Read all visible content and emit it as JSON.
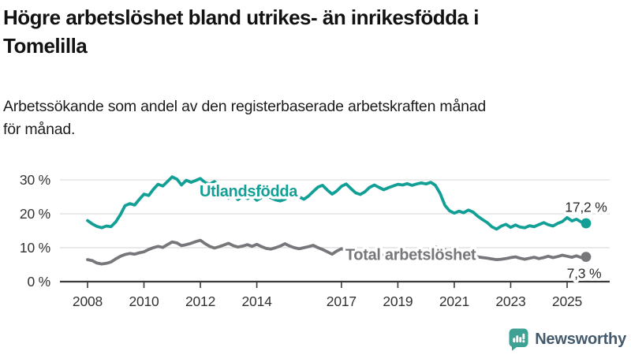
{
  "header": {
    "title": "Högre arbetslöshet bland utrikes- än inrikesfödda i Tomelilla",
    "title_lines": [
      "Högre arbetslöshet bland utrikes- än inrikesfödda i",
      "Tomelilla"
    ],
    "subtitle": "Arbetssökande som andel av den registerbaserade arbetskraften månad för månad.",
    "subtitle_lines": [
      "Arbetssökande som andel av den registerbaserade arbetskraften månad",
      "för månad."
    ]
  },
  "chart_data": {
    "type": "line",
    "unit": "%",
    "xlabel": "",
    "ylabel": "",
    "xlim": [
      2007.05,
      2026.51
    ],
    "ylim": [
      0,
      34.2
    ],
    "grid": "horizontal",
    "grid_color": "#dcdcdc",
    "axis_color": "#3a3a3a",
    "tick_label_color": "#333333",
    "end_label_color": "#2b2b2b",
    "x_ticks": [
      2008,
      2010,
      2012,
      2014,
      2017,
      2019,
      2021,
      2023,
      2025
    ],
    "x_tick_labels": [
      "2008",
      "2010",
      "2012",
      "2014",
      "2017",
      "2019",
      "2021",
      "2023",
      "2025"
    ],
    "y_ticks": [
      0,
      10,
      20,
      30
    ],
    "y_tick_labels": [
      "0 %",
      "10 %",
      "20 %",
      "30 %"
    ],
    "series": [
      {
        "name": "Utlandsfödda",
        "color": "#12a096",
        "end_value": 17.2,
        "end_label": "17,2 %",
        "label_anchor": [
          2011.97,
          25.1
        ],
        "label_align": "start",
        "end_label_anchor": [
          2025.67,
          20.6
        ],
        "end_label_align": "middle",
        "points": [
          [
            2008,
            18
          ],
          [
            2008.17,
            17
          ],
          [
            2008.33,
            16.3
          ],
          [
            2008.5,
            15.9
          ],
          [
            2008.67,
            16.4
          ],
          [
            2008.83,
            16.2
          ],
          [
            2009,
            17.6
          ],
          [
            2009.17,
            19.8
          ],
          [
            2009.33,
            22.4
          ],
          [
            2009.5,
            23
          ],
          [
            2009.67,
            22.6
          ],
          [
            2009.83,
            24.2
          ],
          [
            2010,
            25.8
          ],
          [
            2010.17,
            25.4
          ],
          [
            2010.33,
            27.2
          ],
          [
            2010.5,
            28.7
          ],
          [
            2010.67,
            28.2
          ],
          [
            2010.83,
            29.5
          ],
          [
            2011,
            30.9
          ],
          [
            2011.17,
            30.2
          ],
          [
            2011.33,
            28.5
          ],
          [
            2011.5,
            29.9
          ],
          [
            2011.67,
            29.3
          ],
          [
            2011.83,
            29.8
          ],
          [
            2012,
            30.4
          ],
          [
            2012.17,
            29.2
          ],
          [
            2012.33,
            28.8
          ],
          [
            2012.5,
            29.5
          ],
          [
            2012.67,
            28.4
          ],
          [
            2012.83,
            25.6
          ],
          [
            2013,
            24.6
          ],
          [
            2013.17,
            25.5
          ],
          [
            2013.33,
            24.2
          ],
          [
            2013.5,
            25.1
          ],
          [
            2013.67,
            24.5
          ],
          [
            2013.83,
            25.3
          ],
          [
            2014,
            24
          ],
          [
            2014.17,
            24.8
          ],
          [
            2014.33,
            25.4
          ],
          [
            2014.5,
            24.7
          ],
          [
            2014.67,
            24.1
          ],
          [
            2014.83,
            23.8
          ],
          [
            2015,
            24.3
          ],
          [
            2015.17,
            25.6
          ],
          [
            2015.33,
            26.1
          ],
          [
            2015.5,
            25
          ],
          [
            2015.67,
            24.3
          ],
          [
            2015.83,
            25.2
          ],
          [
            2016,
            26.6
          ],
          [
            2016.17,
            27.9
          ],
          [
            2016.33,
            28.4
          ],
          [
            2016.5,
            27
          ],
          [
            2016.67,
            25.8
          ],
          [
            2016.83,
            26.7
          ],
          [
            2017,
            28.1
          ],
          [
            2017.17,
            28.8
          ],
          [
            2017.33,
            27.5
          ],
          [
            2017.5,
            26.2
          ],
          [
            2017.67,
            25.7
          ],
          [
            2017.83,
            26.5
          ],
          [
            2018,
            27.8
          ],
          [
            2018.17,
            28.5
          ],
          [
            2018.33,
            27.8
          ],
          [
            2018.5,
            27.1
          ],
          [
            2018.67,
            27.7
          ],
          [
            2018.83,
            28.2
          ],
          [
            2019,
            28.7
          ],
          [
            2019.17,
            28.5
          ],
          [
            2019.33,
            28.9
          ],
          [
            2019.5,
            28.4
          ],
          [
            2019.67,
            28.8
          ],
          [
            2019.83,
            29.1
          ],
          [
            2020,
            28.8
          ],
          [
            2020.17,
            29.3
          ],
          [
            2020.33,
            28.4
          ],
          [
            2020.5,
            26
          ],
          [
            2020.67,
            22.5
          ],
          [
            2020.83,
            20.9
          ],
          [
            2021,
            20.2
          ],
          [
            2021.17,
            20.8
          ],
          [
            2021.33,
            20.3
          ],
          [
            2021.5,
            21.1
          ],
          [
            2021.67,
            20.5
          ],
          [
            2021.83,
            19.3
          ],
          [
            2022,
            18.3
          ],
          [
            2022.17,
            17.4
          ],
          [
            2022.33,
            16.2
          ],
          [
            2022.5,
            15.5
          ],
          [
            2022.67,
            16.4
          ],
          [
            2022.83,
            16.9
          ],
          [
            2023,
            16
          ],
          [
            2023.17,
            16.7
          ],
          [
            2023.33,
            16.1
          ],
          [
            2023.5,
            15.9
          ],
          [
            2023.67,
            16.5
          ],
          [
            2023.83,
            16.2
          ],
          [
            2024,
            16.8
          ],
          [
            2024.17,
            17.4
          ],
          [
            2024.33,
            16.8
          ],
          [
            2024.5,
            16.4
          ],
          [
            2024.67,
            17.2
          ],
          [
            2024.83,
            17.7
          ],
          [
            2025,
            18.9
          ],
          [
            2025.17,
            17.9
          ],
          [
            2025.33,
            18.4
          ],
          [
            2025.5,
            17.6
          ],
          [
            2025.67,
            17.2
          ]
        ]
      },
      {
        "name": "Total arbetslöshet",
        "color": "#77777b",
        "end_value": 7.3,
        "end_label": "7,3 %",
        "label_anchor": [
          2017.14,
          6.4
        ],
        "label_align": "start",
        "end_label_anchor": [
          2025.6,
          1.0
        ],
        "end_label_align": "middle",
        "points": [
          [
            2008,
            6.5
          ],
          [
            2008.17,
            6.2
          ],
          [
            2008.33,
            5.5
          ],
          [
            2008.5,
            5.2
          ],
          [
            2008.67,
            5.4
          ],
          [
            2008.83,
            5.8
          ],
          [
            2009,
            6.7
          ],
          [
            2009.17,
            7.5
          ],
          [
            2009.33,
            8
          ],
          [
            2009.5,
            8.3
          ],
          [
            2009.67,
            8.1
          ],
          [
            2009.83,
            8.5
          ],
          [
            2010,
            8.8
          ],
          [
            2010.17,
            9.5
          ],
          [
            2010.33,
            10
          ],
          [
            2010.5,
            10.4
          ],
          [
            2010.67,
            10.1
          ],
          [
            2010.83,
            10.9
          ],
          [
            2011,
            11.7
          ],
          [
            2011.17,
            11.4
          ],
          [
            2011.33,
            10.6
          ],
          [
            2011.5,
            10.9
          ],
          [
            2011.67,
            11.3
          ],
          [
            2011.83,
            11.8
          ],
          [
            2012,
            12.2
          ],
          [
            2012.17,
            11.2
          ],
          [
            2012.33,
            10.4
          ],
          [
            2012.5,
            9.9
          ],
          [
            2012.67,
            10.3
          ],
          [
            2012.83,
            10.8
          ],
          [
            2013,
            11.3
          ],
          [
            2013.17,
            10.6
          ],
          [
            2013.33,
            10.2
          ],
          [
            2013.5,
            10.5
          ],
          [
            2013.67,
            10.9
          ],
          [
            2013.83,
            10.4
          ],
          [
            2014,
            11
          ],
          [
            2014.17,
            10.3
          ],
          [
            2014.33,
            9.8
          ],
          [
            2014.5,
            9.6
          ],
          [
            2014.67,
            10
          ],
          [
            2014.83,
            10.5
          ],
          [
            2015,
            11.2
          ],
          [
            2015.17,
            10.5
          ],
          [
            2015.33,
            10
          ],
          [
            2015.5,
            9.7
          ],
          [
            2015.67,
            10
          ],
          [
            2015.83,
            10.3
          ],
          [
            2016,
            10.7
          ],
          [
            2016.17,
            10
          ],
          [
            2016.33,
            9.5
          ],
          [
            2016.5,
            8.8
          ],
          [
            2016.67,
            8.1
          ],
          [
            2016.83,
            9
          ],
          [
            2017,
            9.7
          ],
          [
            2017.17,
            9.2
          ],
          [
            2017.33,
            8.8
          ],
          [
            2017.5,
            8.5
          ],
          [
            2017.67,
            8.2
          ],
          [
            2017.83,
            8.6
          ],
          [
            2018,
            8.9
          ],
          [
            2018.17,
            8.4
          ],
          [
            2018.33,
            8
          ],
          [
            2018.5,
            7.7
          ],
          [
            2018.67,
            7.9
          ],
          [
            2018.83,
            8.2
          ],
          [
            2019,
            8.5
          ],
          [
            2019.17,
            8.1
          ],
          [
            2019.33,
            7.8
          ],
          [
            2019.5,
            8
          ],
          [
            2019.67,
            8.3
          ],
          [
            2019.83,
            8.6
          ],
          [
            2020,
            8.9
          ],
          [
            2020.17,
            9.6
          ],
          [
            2020.33,
            10.2
          ],
          [
            2020.5,
            9.8
          ],
          [
            2020.67,
            9.4
          ],
          [
            2020.83,
            9.1
          ],
          [
            2021,
            8.8
          ],
          [
            2021.17,
            8.5
          ],
          [
            2021.33,
            8.2
          ],
          [
            2021.5,
            7.9
          ],
          [
            2021.67,
            7.6
          ],
          [
            2021.83,
            7.3
          ],
          [
            2022,
            7.1
          ],
          [
            2022.17,
            6.9
          ],
          [
            2022.33,
            6.7
          ],
          [
            2022.5,
            6.5
          ],
          [
            2022.67,
            6.6
          ],
          [
            2022.83,
            6.8
          ],
          [
            2023,
            7.1
          ],
          [
            2023.17,
            7.3
          ],
          [
            2023.33,
            6.9
          ],
          [
            2023.5,
            6.6
          ],
          [
            2023.67,
            6.9
          ],
          [
            2023.83,
            7.2
          ],
          [
            2024,
            6.8
          ],
          [
            2024.17,
            7.1
          ],
          [
            2024.33,
            7.5
          ],
          [
            2024.5,
            7.1
          ],
          [
            2024.67,
            7.4
          ],
          [
            2024.83,
            7.8
          ],
          [
            2025,
            7.5
          ],
          [
            2025.17,
            7.2
          ],
          [
            2025.33,
            7.6
          ],
          [
            2025.5,
            7.1
          ],
          [
            2025.67,
            7.3
          ]
        ]
      }
    ]
  },
  "branding": {
    "name": "Newsworthy",
    "icon": "newsworthy-chart-bubble-icon",
    "icon_color": "#3da294",
    "text_color": "#44596b"
  }
}
